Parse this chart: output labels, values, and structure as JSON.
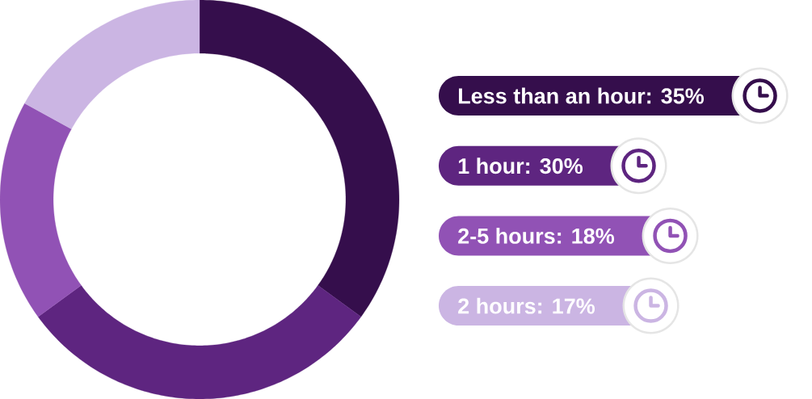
{
  "chart_data": {
    "type": "donut",
    "categories": [
      "Less than an hour: 35%",
      "1 hour: 30%",
      "2-5 hours: 18%",
      "2 hours: 17%"
    ],
    "values": [
      35,
      30,
      18,
      17
    ],
    "colors": [
      "#350e4c",
      "#5e2580",
      "#9152b5",
      "#cbb5e3"
    ],
    "legend": "right"
  }
}
